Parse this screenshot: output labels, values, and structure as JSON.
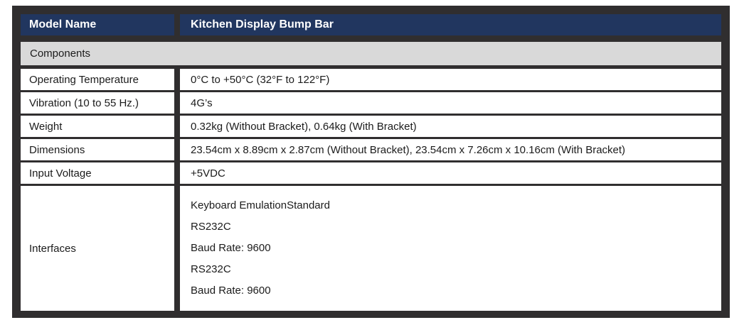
{
  "table": {
    "header": {
      "label": "Model Name",
      "value": "Kitchen Display Bump Bar"
    },
    "section": "Components",
    "rows": [
      {
        "label": "Operating Temperature",
        "value": "0°C to +50°C (32°F to 122°F)"
      },
      {
        "label": "Vibration (10 to 55 Hz.)",
        "value": "4G’s"
      },
      {
        "label": "Weight",
        "value": "0.32kg (Without Bracket), 0.64kg (With Bracket)"
      },
      {
        "label": "Dimensions",
        "value": "23.54cm x 8.89cm x 2.87cm (Without Bracket), 23.54cm x 7.26cm x 10.16cm (With Bracket)"
      },
      {
        "label": "Input Voltage",
        "value": "+5VDC"
      },
      {
        "label": "Interfaces",
        "lines": [
          "Keyboard EmulationStandard",
          "RS232C",
          "Baud Rate: 9600",
          "RS232C",
          "Baud Rate: 9600"
        ]
      }
    ],
    "colors": {
      "header_bg": "#21365f",
      "header_text": "#ffffff",
      "section_bg": "#d9d9d9",
      "frame": "#302e2f",
      "body_text": "#1b1b1b"
    }
  }
}
